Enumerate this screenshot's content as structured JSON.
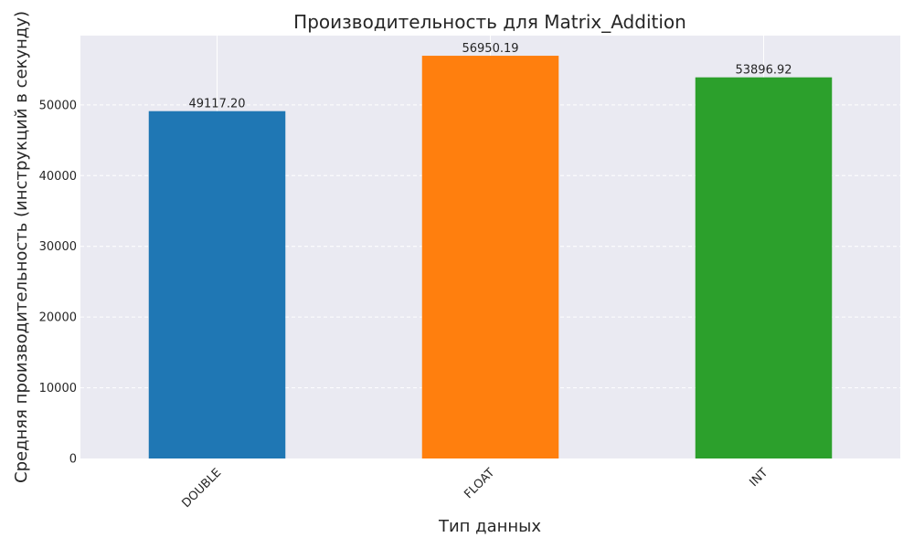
{
  "chart_data": {
    "type": "bar",
    "title": "Производительность для  Matrix_Addition",
    "xlabel": "Тип данных",
    "ylabel": "Средняя производительность (инструкций в секунду)",
    "categories": [
      "DOUBLE",
      "FLOAT",
      "INT"
    ],
    "values": [
      49117.2,
      56950.19,
      53896.92
    ],
    "value_labels": [
      "49117.20",
      "56950.19",
      "53896.92"
    ],
    "colors": [
      "#1f77b4",
      "#ff7f0e",
      "#2ca02c"
    ],
    "ylim": [
      0,
      59797.7
    ],
    "yticks": [
      0,
      10000,
      20000,
      30000,
      40000,
      50000
    ],
    "grid": true,
    "background": "#eaeaf2",
    "tick_rotation": 45
  }
}
